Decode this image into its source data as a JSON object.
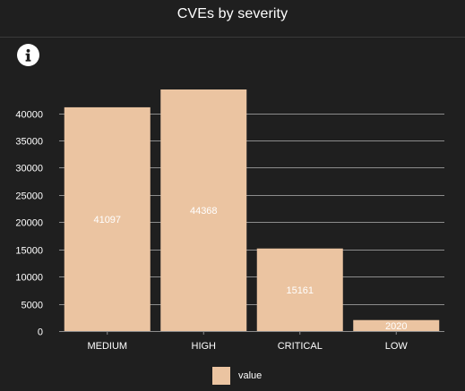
{
  "panel": {
    "title": "CVEs by severity",
    "info_icon": "info-icon"
  },
  "colors": {
    "background": "#1f1f1f",
    "bar": "#ebc4a1",
    "grid": "#8c8c8c",
    "text": "#ffffff"
  },
  "chart_data": {
    "type": "bar",
    "categories": [
      "MEDIUM",
      "HIGH",
      "CRITICAL",
      "LOW"
    ],
    "series": [
      {
        "name": "value",
        "values": [
          41097,
          44368,
          15161,
          2020
        ]
      }
    ],
    "data_labels": [
      "41097",
      "44368",
      "15161",
      "2020"
    ],
    "ylim": [
      0,
      44368
    ],
    "yticks": [
      0,
      5000,
      10000,
      15000,
      20000,
      25000,
      30000,
      35000,
      40000
    ],
    "grid": true,
    "legend_position": "bottom"
  }
}
